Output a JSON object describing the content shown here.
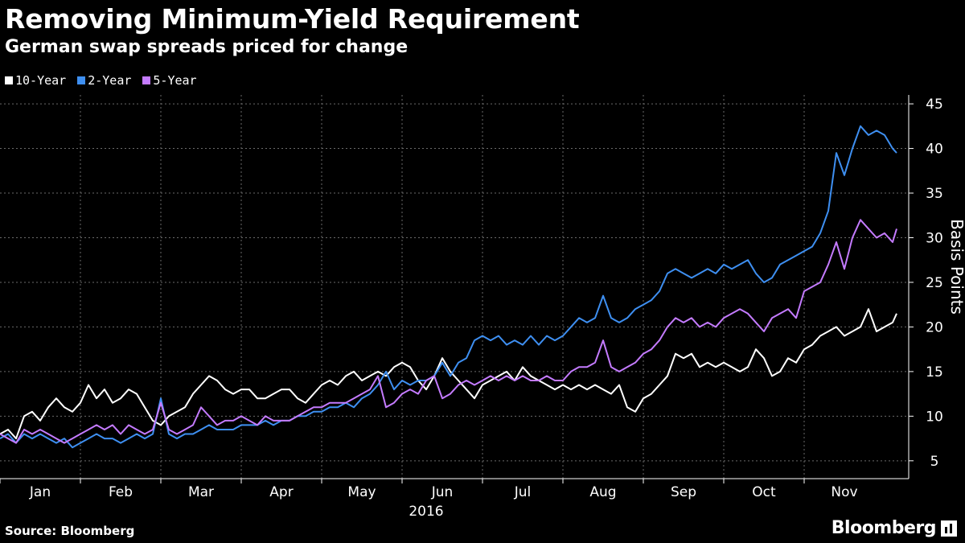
{
  "header": {
    "title": "Removing Minimum-Yield Requirement",
    "subtitle": "German swap spreads priced for change"
  },
  "footer": {
    "source": "Source: Bloomberg",
    "brand": "Bloomberg"
  },
  "chart_data": {
    "type": "line",
    "title": "Removing Minimum-Yield Requirement",
    "subtitle": "German swap spreads priced for change",
    "ylabel": "Basis Points",
    "xlabel": "2016",
    "ylim": [
      3,
      46
    ],
    "yticks": [
      5,
      10,
      15,
      20,
      25,
      30,
      35,
      40,
      45
    ],
    "xlim": [
      0,
      11.3
    ],
    "months": [
      {
        "label": "Jan",
        "value": 0
      },
      {
        "label": "Feb",
        "value": 1
      },
      {
        "label": "Mar",
        "value": 2
      },
      {
        "label": "Apr",
        "value": 3
      },
      {
        "label": "May",
        "value": 4
      },
      {
        "label": "Jun",
        "value": 5
      },
      {
        "label": "Jul",
        "value": 6
      },
      {
        "label": "Aug",
        "value": 7
      },
      {
        "label": "Sep",
        "value": 8
      },
      {
        "label": "Oct",
        "value": 9
      },
      {
        "label": "Nov",
        "value": 10
      }
    ],
    "year_label": "2016",
    "grid": true,
    "legend_position": "top-left",
    "series": [
      {
        "name": "10-Year",
        "color": "#ffffff",
        "x": [
          0.0,
          0.1,
          0.2,
          0.3,
          0.4,
          0.5,
          0.6,
          0.7,
          0.8,
          0.9,
          1.0,
          1.1,
          1.2,
          1.3,
          1.4,
          1.5,
          1.6,
          1.7,
          1.8,
          1.9,
          2.0,
          2.1,
          2.2,
          2.3,
          2.4,
          2.5,
          2.6,
          2.7,
          2.8,
          2.9,
          3.0,
          3.1,
          3.2,
          3.3,
          3.4,
          3.5,
          3.6,
          3.7,
          3.8,
          3.9,
          4.0,
          4.1,
          4.2,
          4.3,
          4.4,
          4.5,
          4.6,
          4.7,
          4.8,
          4.9,
          5.0,
          5.1,
          5.2,
          5.3,
          5.4,
          5.5,
          5.6,
          5.7,
          5.8,
          5.9,
          6.0,
          6.1,
          6.2,
          6.3,
          6.4,
          6.5,
          6.6,
          6.7,
          6.8,
          6.9,
          7.0,
          7.1,
          7.2,
          7.3,
          7.4,
          7.5,
          7.6,
          7.7,
          7.8,
          7.9,
          8.0,
          8.1,
          8.2,
          8.3,
          8.4,
          8.5,
          8.6,
          8.7,
          8.8,
          8.9,
          9.0,
          9.1,
          9.2,
          9.3,
          9.4,
          9.5,
          9.6,
          9.7,
          9.8,
          9.9,
          10.0,
          10.1,
          10.2,
          10.3,
          10.4,
          10.5,
          10.6,
          10.7,
          10.8,
          10.9,
          11.0,
          11.1,
          11.15
        ],
        "values": [
          8.0,
          8.5,
          7.5,
          10.0,
          10.5,
          9.5,
          11.0,
          12.0,
          11.0,
          10.5,
          11.5,
          13.5,
          12.0,
          13.0,
          11.5,
          12.0,
          13.0,
          12.5,
          11.0,
          9.5,
          9.0,
          10.0,
          10.5,
          11.0,
          12.5,
          13.5,
          14.5,
          14.0,
          13.0,
          12.5,
          13.0,
          13.0,
          12.0,
          12.0,
          12.5,
          13.0,
          13.0,
          12.0,
          11.5,
          12.5,
          13.5,
          14.0,
          13.5,
          14.5,
          15.0,
          14.0,
          14.5,
          15.0,
          14.5,
          15.5,
          16.0,
          15.5,
          14.0,
          13.0,
          14.5,
          16.5,
          15.0,
          14.0,
          13.0,
          12.0,
          13.5,
          14.0,
          14.5,
          15.0,
          14.0,
          15.5,
          14.5,
          14.0,
          13.5,
          13.0,
          13.5,
          13.0,
          13.5,
          13.0,
          13.5,
          13.0,
          12.5,
          13.5,
          11.0,
          10.5,
          12.0,
          12.5,
          13.5,
          14.5,
          17.0,
          16.5,
          17.0,
          15.5,
          16.0,
          15.5,
          16.0,
          15.5,
          15.0,
          15.5,
          17.5,
          16.5,
          14.5,
          15.0,
          16.5,
          16.0,
          17.5,
          18.0,
          19.0,
          19.5,
          20.0,
          19.0,
          19.5,
          20.0,
          22.0,
          19.5,
          20.0,
          20.5,
          21.5
        ]
      },
      {
        "name": "2-Year",
        "color": "#3e8ff1",
        "x": [
          0.0,
          0.1,
          0.2,
          0.3,
          0.4,
          0.5,
          0.6,
          0.7,
          0.8,
          0.9,
          1.0,
          1.1,
          1.2,
          1.3,
          1.4,
          1.5,
          1.6,
          1.7,
          1.8,
          1.9,
          2.0,
          2.1,
          2.2,
          2.3,
          2.4,
          2.5,
          2.6,
          2.7,
          2.8,
          2.9,
          3.0,
          3.1,
          3.2,
          3.3,
          3.4,
          3.5,
          3.6,
          3.7,
          3.8,
          3.9,
          4.0,
          4.1,
          4.2,
          4.3,
          4.4,
          4.5,
          4.6,
          4.7,
          4.8,
          4.9,
          5.0,
          5.1,
          5.2,
          5.3,
          5.4,
          5.5,
          5.6,
          5.7,
          5.8,
          5.9,
          6.0,
          6.1,
          6.2,
          6.3,
          6.4,
          6.5,
          6.6,
          6.7,
          6.8,
          6.9,
          7.0,
          7.1,
          7.2,
          7.3,
          7.4,
          7.5,
          7.6,
          7.7,
          7.8,
          7.9,
          8.0,
          8.1,
          8.2,
          8.3,
          8.4,
          8.5,
          8.6,
          8.7,
          8.8,
          8.9,
          9.0,
          9.1,
          9.2,
          9.3,
          9.4,
          9.5,
          9.6,
          9.7,
          9.8,
          9.9,
          10.0,
          10.1,
          10.2,
          10.3,
          10.4,
          10.5,
          10.6,
          10.7,
          10.8,
          10.9,
          11.0,
          11.1,
          11.15
        ],
        "values": [
          7.5,
          8.0,
          7.0,
          8.0,
          7.5,
          8.0,
          7.5,
          7.0,
          7.5,
          6.5,
          7.0,
          7.5,
          8.0,
          7.5,
          7.5,
          7.0,
          7.5,
          8.0,
          7.5,
          8.0,
          12.0,
          8.0,
          7.5,
          8.0,
          8.0,
          8.5,
          9.0,
          8.5,
          8.5,
          8.5,
          9.0,
          9.0,
          9.0,
          9.5,
          9.0,
          9.5,
          9.5,
          10.0,
          10.0,
          10.5,
          10.5,
          11.0,
          11.0,
          11.5,
          11.0,
          12.0,
          12.5,
          13.5,
          15.0,
          13.0,
          14.0,
          13.5,
          14.0,
          14.0,
          14.5,
          16.0,
          14.5,
          16.0,
          16.5,
          18.5,
          19.0,
          18.5,
          19.0,
          18.0,
          18.5,
          18.0,
          19.0,
          18.0,
          19.0,
          18.5,
          19.0,
          20.0,
          21.0,
          20.5,
          21.0,
          23.5,
          21.0,
          20.5,
          21.0,
          22.0,
          22.5,
          23.0,
          24.0,
          26.0,
          26.5,
          26.0,
          25.5,
          26.0,
          26.5,
          26.0,
          27.0,
          26.5,
          27.0,
          27.5,
          26.0,
          25.0,
          25.5,
          27.0,
          27.5,
          28.0,
          28.5,
          29.0,
          30.5,
          33.0,
          39.5,
          37.0,
          40.0,
          42.5,
          41.5,
          42.0,
          41.5,
          40.0,
          39.5
        ]
      },
      {
        "name": "5-Year",
        "color": "#c47bff",
        "x": [
          0.0,
          0.1,
          0.2,
          0.3,
          0.4,
          0.5,
          0.6,
          0.7,
          0.8,
          0.9,
          1.0,
          1.1,
          1.2,
          1.3,
          1.4,
          1.5,
          1.6,
          1.7,
          1.8,
          1.9,
          2.0,
          2.1,
          2.2,
          2.3,
          2.4,
          2.5,
          2.6,
          2.7,
          2.8,
          2.9,
          3.0,
          3.1,
          3.2,
          3.3,
          3.4,
          3.5,
          3.6,
          3.7,
          3.8,
          3.9,
          4.0,
          4.1,
          4.2,
          4.3,
          4.4,
          4.5,
          4.6,
          4.7,
          4.8,
          4.9,
          5.0,
          5.1,
          5.2,
          5.3,
          5.4,
          5.5,
          5.6,
          5.7,
          5.8,
          5.9,
          6.0,
          6.1,
          6.2,
          6.3,
          6.4,
          6.5,
          6.6,
          6.7,
          6.8,
          6.9,
          7.0,
          7.1,
          7.2,
          7.3,
          7.4,
          7.5,
          7.6,
          7.7,
          7.8,
          7.9,
          8.0,
          8.1,
          8.2,
          8.3,
          8.4,
          8.5,
          8.6,
          8.7,
          8.8,
          8.9,
          9.0,
          9.1,
          9.2,
          9.3,
          9.4,
          9.5,
          9.6,
          9.7,
          9.8,
          9.9,
          10.0,
          10.1,
          10.2,
          10.3,
          10.4,
          10.5,
          10.6,
          10.7,
          10.8,
          10.9,
          11.0,
          11.1,
          11.15
        ],
        "values": [
          8.0,
          7.5,
          7.0,
          8.5,
          8.0,
          8.5,
          8.0,
          7.5,
          7.0,
          7.5,
          8.0,
          8.5,
          9.0,
          8.5,
          9.0,
          8.0,
          9.0,
          8.5,
          8.0,
          8.5,
          11.5,
          8.5,
          8.0,
          8.5,
          9.0,
          11.0,
          10.0,
          9.0,
          9.5,
          9.5,
          10.0,
          9.5,
          9.0,
          10.0,
          9.5,
          9.5,
          9.5,
          10.0,
          10.5,
          11.0,
          11.0,
          11.5,
          11.5,
          11.5,
          12.0,
          12.5,
          13.0,
          14.5,
          11.0,
          11.5,
          12.5,
          13.0,
          12.5,
          14.0,
          14.5,
          12.0,
          12.5,
          13.5,
          14.0,
          13.5,
          14.0,
          14.5,
          14.0,
          14.5,
          14.0,
          14.5,
          14.0,
          14.0,
          14.5,
          14.0,
          14.0,
          15.0,
          15.5,
          15.5,
          16.0,
          18.5,
          15.5,
          15.0,
          15.5,
          16.0,
          17.0,
          17.5,
          18.5,
          20.0,
          21.0,
          20.5,
          21.0,
          20.0,
          20.5,
          20.0,
          21.0,
          21.5,
          22.0,
          21.5,
          20.5,
          19.5,
          21.0,
          21.5,
          22.0,
          21.0,
          24.0,
          24.5,
          25.0,
          27.0,
          29.5,
          26.5,
          30.0,
          32.0,
          31.0,
          30.0,
          30.5,
          29.5,
          31.0
        ]
      }
    ]
  }
}
